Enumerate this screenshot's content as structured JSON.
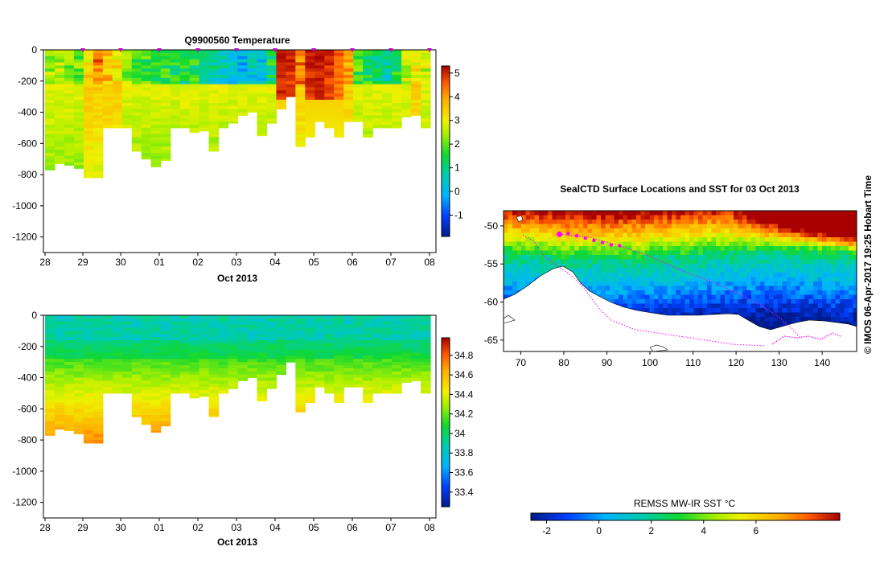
{
  "chart_data": [
    {
      "id": "temperature",
      "type": "heatmap",
      "title": "Q9900560  Temperature",
      "xlabel": "Oct 2013",
      "x_ticks": [
        "28",
        "29",
        "30",
        "01",
        "02",
        "03",
        "04",
        "05",
        "06",
        "07",
        "08"
      ],
      "y_ticks": [
        "0",
        "-200",
        "-400",
        "-600",
        "-800",
        "-1000",
        "-1200"
      ],
      "ylim": [
        -1300,
        0
      ],
      "colorbar_ticks": [
        "5",
        "4",
        "3",
        "2",
        "1",
        "0",
        "-1"
      ],
      "colorbar_range": [
        -1.9,
        5.3
      ],
      "profile_max_depths": [
        770,
        730,
        740,
        760,
        820,
        820,
        500,
        500,
        500,
        650,
        700,
        750,
        710,
        500,
        500,
        530,
        520,
        650,
        500,
        470,
        420,
        400,
        550,
        470,
        380,
        300,
        620,
        560,
        460,
        500,
        560,
        460,
        460,
        560,
        500,
        500,
        500,
        430,
        420,
        500
      ],
      "surface_temps": [
        2.5,
        2.6,
        2.4,
        2.2,
        3.4,
        4.3,
        3.8,
        3.2,
        2.4,
        2.0,
        1.8,
        1.5,
        1.6,
        1.6,
        1.4,
        1.5,
        1.3,
        0.9,
        0.6,
        0.3,
        0.1,
        0.4,
        0.2,
        1.4,
        5.2,
        5.0,
        4.4,
        5.1,
        5.2,
        5.0,
        4.6,
        3.8,
        1.8,
        1.5,
        1.2,
        0.9,
        1.6,
        2.8,
        3.1,
        2.7
      ]
    },
    {
      "id": "salinity",
      "type": "heatmap",
      "title": "",
      "xlabel": "Oct 2013",
      "x_ticks": [
        "28",
        "29",
        "30",
        "01",
        "02",
        "03",
        "04",
        "05",
        "06",
        "07",
        "08"
      ],
      "y_ticks": [
        "0",
        "-200",
        "-400",
        "-600",
        "-800",
        "-1000",
        "-1200"
      ],
      "ylim": [
        -1300,
        0
      ],
      "colorbar_ticks": [
        "34.8",
        "34.6",
        "34.4",
        "34.2",
        "34",
        "33.8",
        "33.6",
        "33.4"
      ],
      "colorbar_range": [
        33.25,
        34.98
      ]
    },
    {
      "id": "sst_map",
      "type": "heatmap",
      "title": "SealCTD Surface Locations and SST for 03 Oct 2013",
      "x_ticks": [
        "70",
        "80",
        "90",
        "100",
        "110",
        "120",
        "130",
        "140"
      ],
      "x_range": [
        66,
        148
      ],
      "y_ticks": [
        "-50",
        "-55",
        "-60",
        "-65"
      ],
      "y_range": [
        -66.5,
        -48
      ],
      "colorbar_label": "REMSS MW-IR SST °C",
      "colorbar_ticks": [
        "-2",
        "0",
        "2",
        "4",
        "6"
      ],
      "colorbar_range": [
        -2.6,
        9.2
      ],
      "track_points": [
        [
          79,
          -51.1
        ],
        [
          81,
          -51.0
        ],
        [
          83,
          -51.3
        ],
        [
          85,
          -51.6
        ],
        [
          87,
          -51.9
        ],
        [
          89,
          -52.2
        ],
        [
          91,
          -52.5
        ],
        [
          93,
          -52.6
        ]
      ],
      "track_lon_lat": [
        [
          79,
          -51.1
        ],
        [
          86,
          -51.5
        ],
        [
          93,
          -52.6
        ],
        [
          100,
          -54
        ],
        [
          108,
          -56
        ],
        [
          115,
          -57.5
        ],
        [
          121,
          -59
        ],
        [
          126,
          -60.5
        ],
        [
          130,
          -62
        ],
        [
          133,
          -63.5
        ],
        [
          135,
          -64.8
        ]
      ]
    }
  ],
  "credit": "© IMOS 06-Apr-2017 19:25 Hobart Time"
}
